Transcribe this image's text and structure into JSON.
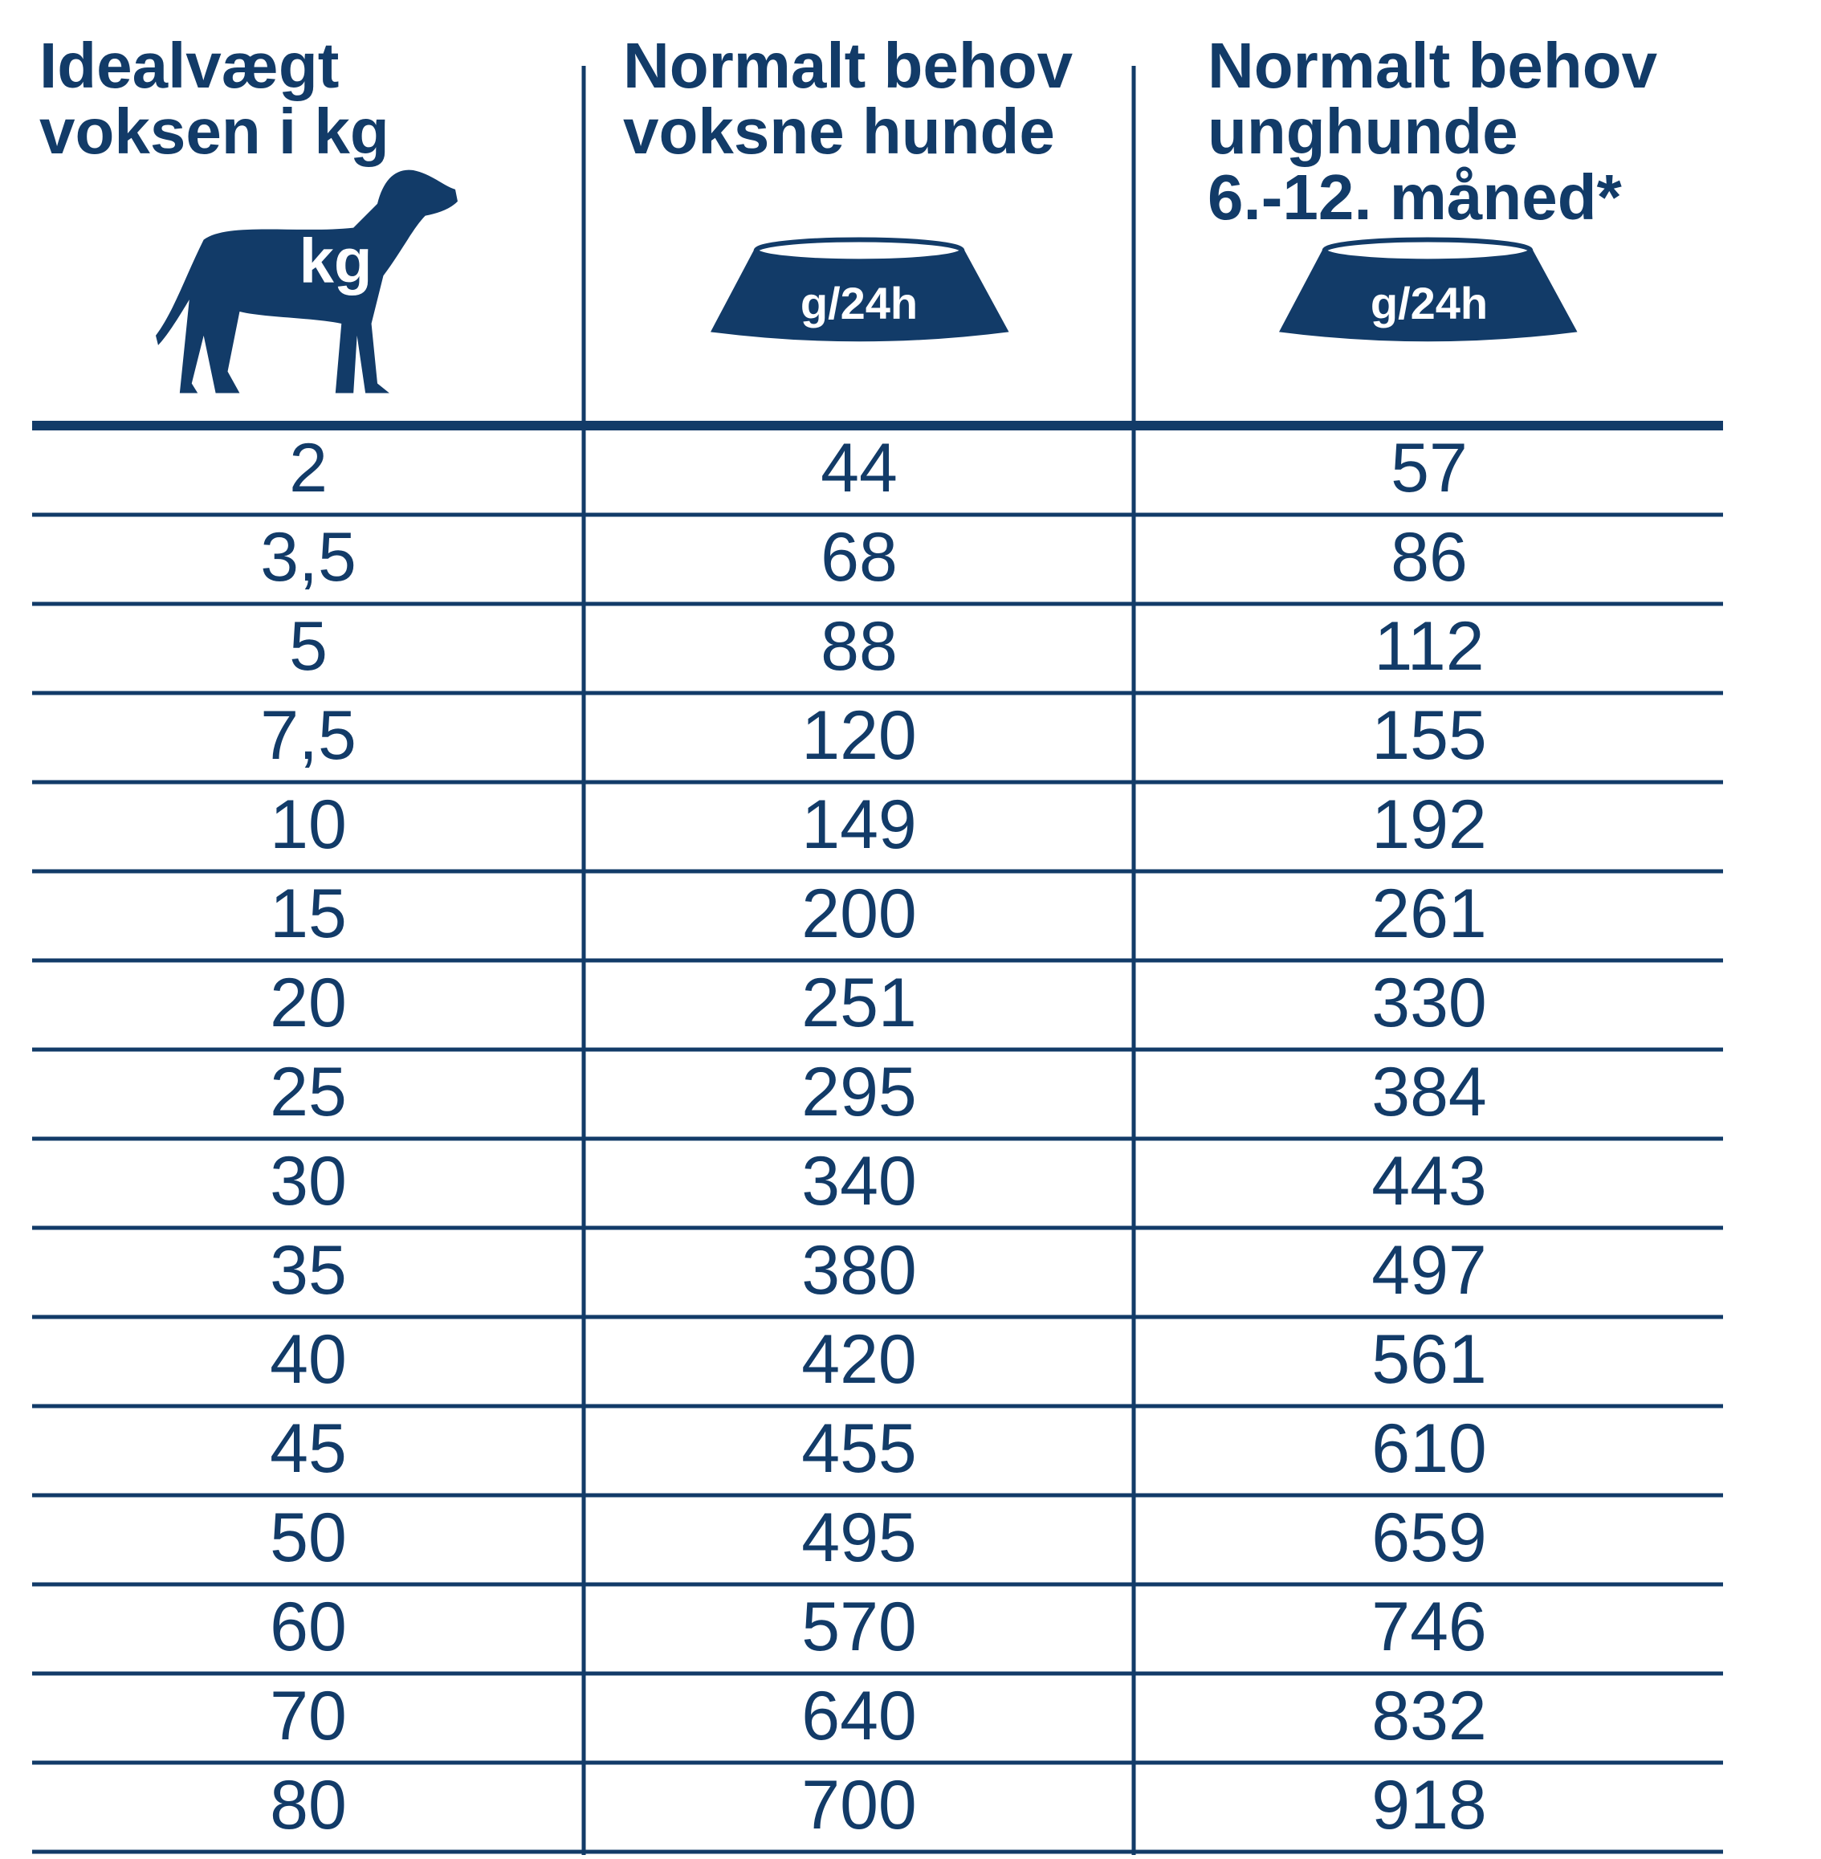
{
  "columns": [
    {
      "lines": [
        "Idealvægt",
        "voksen i kg"
      ],
      "icon_label": "kg"
    },
    {
      "lines": [
        "Normalt behov",
        "voksne hunde"
      ],
      "icon_label": "g/24h"
    },
    {
      "lines": [
        "Normalt behov",
        "unghunde",
        "6.-12. måned*"
      ],
      "icon_label": "g/24h"
    }
  ],
  "rows": [
    [
      "2",
      "44",
      "57"
    ],
    [
      "3,5",
      "68",
      "86"
    ],
    [
      "5",
      "88",
      "112"
    ],
    [
      "7,5",
      "120",
      "155"
    ],
    [
      "10",
      "149",
      "192"
    ],
    [
      "15",
      "200",
      "261"
    ],
    [
      "20",
      "251",
      "330"
    ],
    [
      "25",
      "295",
      "384"
    ],
    [
      "30",
      "340",
      "443"
    ],
    [
      "35",
      "380",
      "497"
    ],
    [
      "40",
      "420",
      "561"
    ],
    [
      "45",
      "455",
      "610"
    ],
    [
      "50",
      "495",
      "659"
    ],
    [
      "60",
      "570",
      "746"
    ],
    [
      "70",
      "640",
      "832"
    ],
    [
      "80",
      "700",
      "918"
    ]
  ]
}
